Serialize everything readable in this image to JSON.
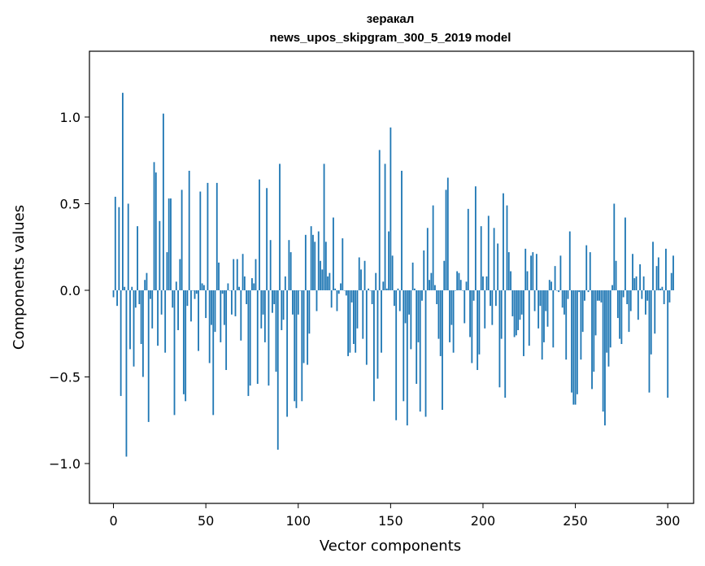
{
  "chart_data": {
    "type": "bar",
    "title_line1": "зеракал",
    "title_line2": "news_upos_skipgram_300_5_2019 model",
    "xlabel": "Vector components",
    "ylabel": "Components values",
    "xlim": [
      -13,
      314
    ],
    "ylim": [
      -1.23,
      1.38
    ],
    "x_ticks": [
      0,
      50,
      100,
      150,
      200,
      250,
      300
    ],
    "x_tick_labels": [
      "0",
      "50",
      "100",
      "150",
      "200",
      "250",
      "300"
    ],
    "y_ticks": [
      1.0,
      0.5,
      0.0,
      -0.5,
      -1.0
    ],
    "y_tick_labels": [
      "1.0",
      "0.5",
      "0.0",
      "−0.5",
      "−1.0"
    ],
    "bar_color": "#1f77b4",
    "grid": false,
    "values": [
      -0.04,
      0.54,
      -0.09,
      0.48,
      -0.61,
      1.14,
      0.02,
      -0.96,
      0.5,
      -0.34,
      0.02,
      -0.44,
      -0.1,
      0.37,
      -0.08,
      -0.31,
      -0.5,
      0.06,
      0.1,
      -0.76,
      -0.05,
      -0.22,
      0.74,
      0.68,
      -0.32,
      0.4,
      -0.14,
      1.02,
      -0.36,
      0.22,
      0.53,
      0.53,
      -0.1,
      -0.72,
      0.05,
      -0.23,
      0.18,
      0.58,
      -0.6,
      -0.64,
      -0.09,
      0.69,
      -0.18,
      0.0,
      -0.05,
      -0.02,
      -0.35,
      0.57,
      0.04,
      0.03,
      -0.16,
      0.62,
      -0.42,
      -0.2,
      -0.72,
      -0.24,
      0.62,
      0.16,
      -0.3,
      -0.02,
      -0.2,
      -0.46,
      0.04,
      0.0,
      -0.14,
      0.18,
      -0.15,
      0.18,
      0.02,
      -0.29,
      0.21,
      0.08,
      -0.08,
      -0.61,
      -0.55,
      0.07,
      0.04,
      0.18,
      -0.54,
      0.64,
      -0.22,
      -0.14,
      -0.3,
      0.59,
      -0.55,
      0.29,
      -0.13,
      -0.08,
      -0.47,
      -0.92,
      0.73,
      -0.23,
      -0.17,
      0.08,
      -0.73,
      0.29,
      0.22,
      -0.14,
      -0.64,
      -0.68,
      -0.14,
      0.0,
      -0.64,
      -0.42,
      0.32,
      -0.43,
      -0.25,
      0.37,
      0.32,
      0.28,
      -0.12,
      0.34,
      0.17,
      0.12,
      0.73,
      0.28,
      0.08,
      0.1,
      -0.1,
      0.42,
      0.01,
      -0.12,
      -0.02,
      0.04,
      0.3,
      0.0,
      -0.03,
      -0.38,
      -0.36,
      -0.07,
      -0.31,
      -0.36,
      -0.22,
      0.19,
      0.12,
      -0.28,
      0.17,
      -0.43,
      0.01,
      0.0,
      -0.08,
      -0.64,
      0.1,
      -0.51,
      0.81,
      -0.36,
      0.05,
      0.73,
      0.01,
      0.34,
      0.94,
      0.2,
      -0.09,
      -0.75,
      0.01,
      -0.12,
      0.69,
      -0.64,
      -0.19,
      -0.78,
      -0.14,
      -0.34,
      0.16,
      0.01,
      -0.54,
      -0.3,
      -0.7,
      -0.06,
      0.23,
      -0.73,
      0.36,
      0.06,
      0.1,
      0.49,
      0.03,
      -0.08,
      -0.28,
      -0.38,
      -0.69,
      0.17,
      0.58,
      0.65,
      -0.3,
      -0.2,
      -0.36,
      0.0,
      0.11,
      0.1,
      0.06,
      0.0,
      -0.19,
      0.05,
      0.47,
      -0.27,
      -0.42,
      -0.06,
      0.6,
      -0.46,
      -0.37,
      0.37,
      0.08,
      -0.22,
      0.08,
      0.43,
      -0.09,
      -0.2,
      0.36,
      -0.09,
      0.27,
      -0.56,
      -0.28,
      0.56,
      -0.62,
      0.49,
      0.22,
      0.11,
      -0.15,
      -0.27,
      -0.26,
      -0.23,
      -0.17,
      -0.14,
      -0.38,
      0.24,
      0.11,
      -0.32,
      0.2,
      0.22,
      -0.12,
      0.21,
      -0.22,
      -0.09,
      -0.4,
      -0.3,
      -0.12,
      -0.21,
      0.06,
      0.05,
      -0.33,
      0.14,
      0.0,
      -0.01,
      0.2,
      -0.1,
      -0.14,
      -0.4,
      -0.05,
      0.34,
      -0.59,
      -0.66,
      -0.66,
      -0.6,
      -0.01,
      -0.4,
      -0.24,
      -0.06,
      0.26,
      -0.01,
      0.22,
      -0.57,
      -0.47,
      -0.26,
      -0.06,
      -0.06,
      -0.07,
      -0.7,
      -0.78,
      -0.36,
      -0.44,
      -0.33,
      0.03,
      0.5,
      0.17,
      -0.16,
      -0.28,
      -0.31,
      -0.04,
      0.42,
      -0.08,
      -0.24,
      -0.12,
      0.21,
      0.07,
      0.08,
      -0.17,
      0.15,
      -0.05,
      0.08,
      -0.14,
      -0.06,
      -0.59,
      -0.37,
      0.28,
      -0.25,
      0.14,
      0.19,
      0.01,
      0.02,
      -0.08,
      0.24,
      -0.62,
      -0.07,
      0.1,
      0.2
    ]
  }
}
